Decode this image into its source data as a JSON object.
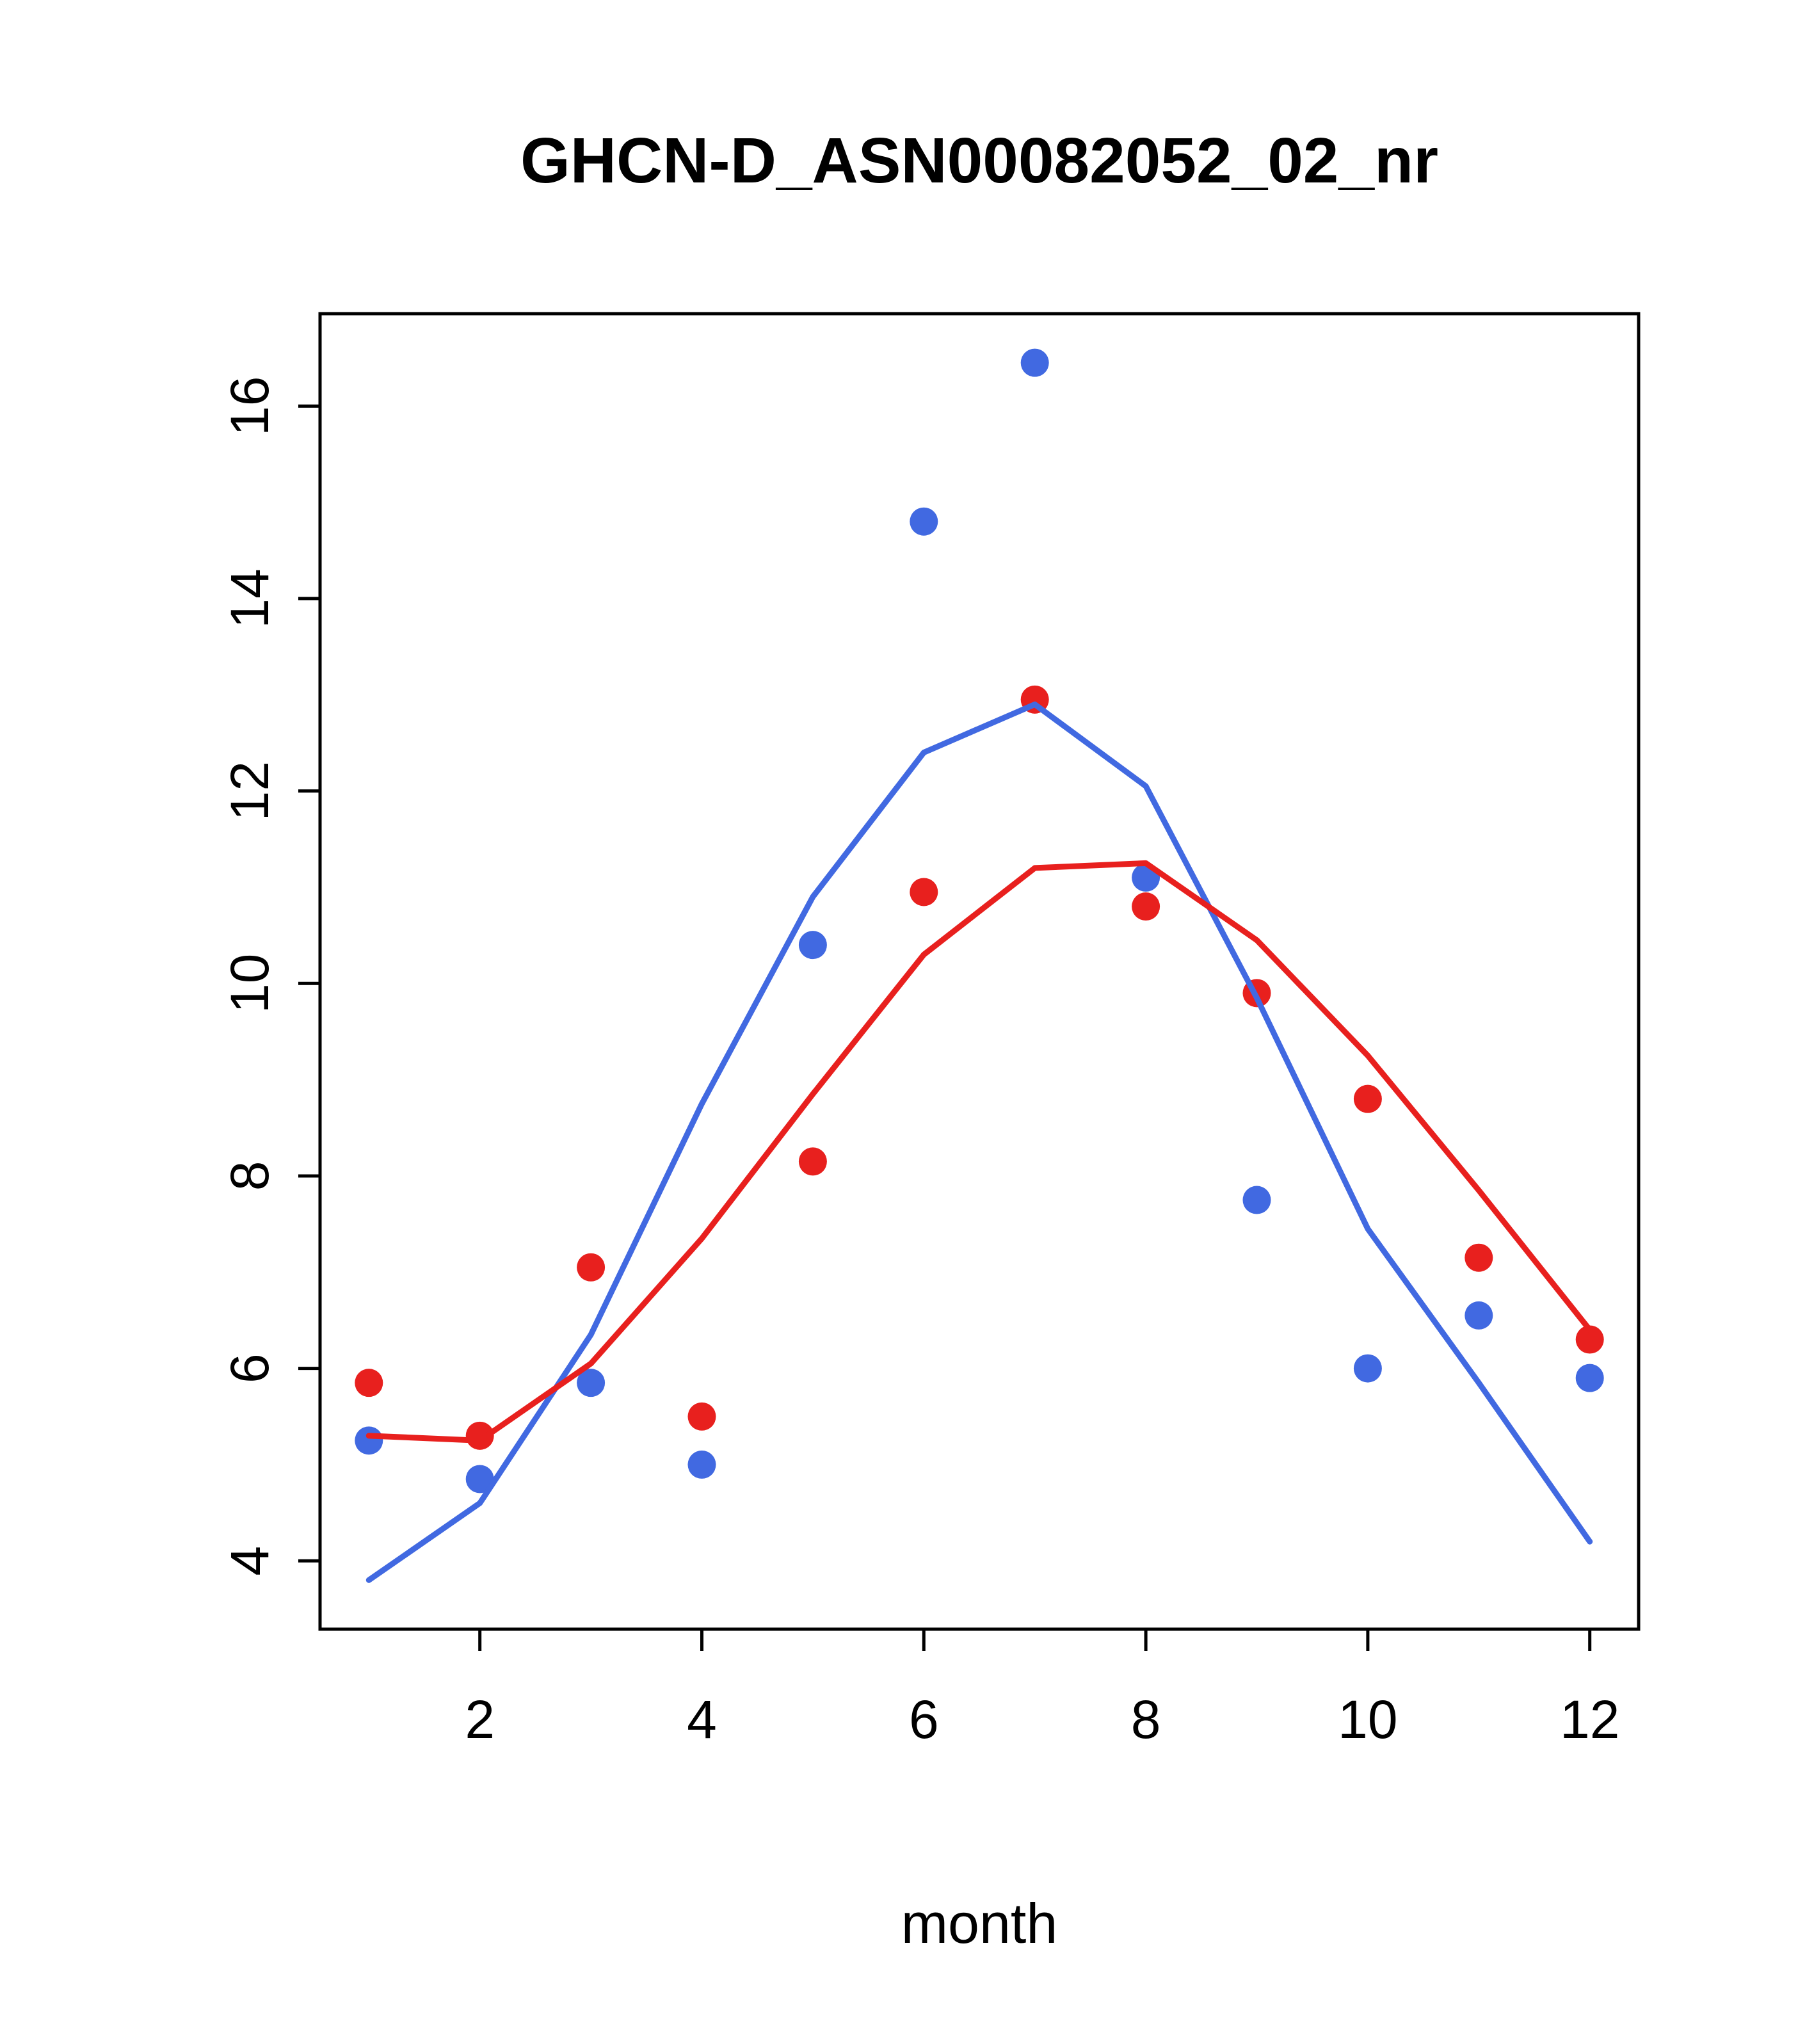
{
  "chart_data": {
    "type": "scatter",
    "title": "GHCN-D_ASN00082052_02_nr",
    "xlabel": "month",
    "ylabel": "",
    "x": [
      1,
      2,
      3,
      4,
      5,
      6,
      7,
      8,
      9,
      10,
      11,
      12
    ],
    "xlim": [
      0.56,
      12.44
    ],
    "ylim": [
      3.29,
      16.96
    ],
    "x_ticks": [
      2,
      4,
      6,
      8,
      10,
      12
    ],
    "y_ticks": [
      4,
      6,
      8,
      10,
      12,
      14,
      16
    ],
    "grid": false,
    "legend": "none",
    "colors": {
      "blue": "#4169e1",
      "red": "#e8201e",
      "axis": "#000000",
      "background": "#ffffff"
    },
    "series": [
      {
        "name": "blue-points",
        "kind": "points",
        "color": "#4169e1",
        "values": [
          5.25,
          4.85,
          5.85,
          5.0,
          10.4,
          14.8,
          16.45,
          11.1,
          7.75,
          6.0,
          6.55,
          5.9
        ]
      },
      {
        "name": "red-points",
        "kind": "points",
        "color": "#e8201e",
        "values": [
          5.85,
          5.3,
          7.05,
          5.5,
          8.15,
          10.95,
          12.95,
          10.8,
          9.9,
          8.8,
          7.15,
          6.3
        ]
      },
      {
        "name": "blue-line",
        "kind": "line",
        "color": "#4169e1",
        "values": [
          3.8,
          4.6,
          6.35,
          8.75,
          10.9,
          12.4,
          12.9,
          12.05,
          9.85,
          7.45,
          5.85,
          4.2
        ]
      },
      {
        "name": "red-line",
        "kind": "line",
        "color": "#e8201e",
        "values": [
          5.3,
          5.25,
          6.05,
          7.35,
          8.85,
          10.3,
          11.2,
          11.25,
          10.45,
          9.25,
          7.85,
          6.4
        ]
      }
    ]
  }
}
